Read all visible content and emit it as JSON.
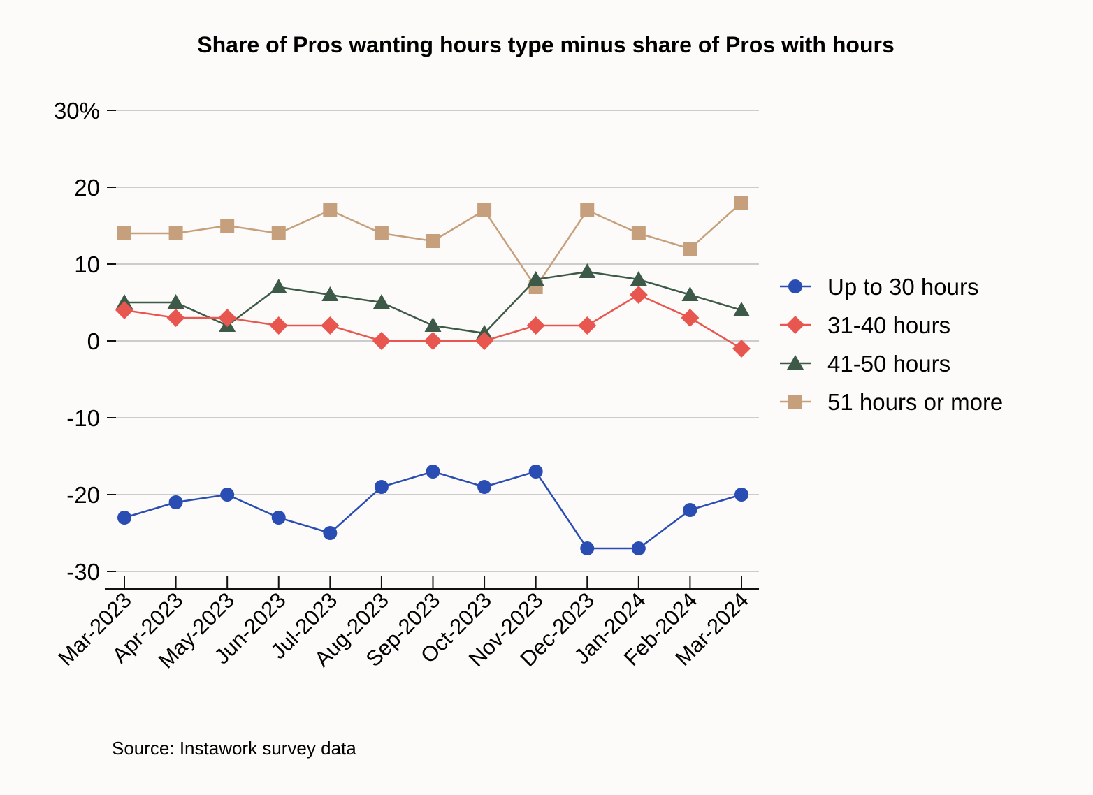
{
  "chart_data": {
    "type": "line",
    "title": "Share of Pros wanting hours type minus share of Pros with hours",
    "xlabel": "",
    "ylabel": "",
    "categories": [
      "Mar-2023",
      "Apr-2023",
      "May-2023",
      "Jun-2023",
      "Jul-2023",
      "Aug-2023",
      "Sep-2023",
      "Oct-2023",
      "Nov-2023",
      "Dec-2023",
      "Jan-2024",
      "Feb-2024",
      "Mar-2024"
    ],
    "ylim": [
      -30,
      30
    ],
    "yticks": [
      30,
      20,
      10,
      0,
      -10,
      -20,
      -30
    ],
    "ytick_labels": [
      "30%",
      "20",
      "10",
      "0",
      "-10",
      "-20",
      "-30"
    ],
    "grid": true,
    "legend_position": "right",
    "series": [
      {
        "name": "Up to 30 hours",
        "color": "#2a4db3",
        "marker": "circle",
        "values": [
          -23,
          -21,
          -20,
          -23,
          -25,
          -19,
          -17,
          -19,
          -17,
          -27,
          -27,
          -22,
          -20
        ]
      },
      {
        "name": "31-40 hours",
        "color": "#e8574f",
        "marker": "diamond",
        "values": [
          4,
          3,
          3,
          2,
          2,
          0,
          0,
          0,
          2,
          2,
          6,
          3,
          -1
        ]
      },
      {
        "name": "41-50 hours",
        "color": "#3d5a48",
        "marker": "triangle",
        "values": [
          5,
          5,
          2,
          7,
          6,
          5,
          2,
          1,
          8,
          9,
          8,
          6,
          4
        ]
      },
      {
        "name": "51 hours or more",
        "color": "#c6a07c",
        "marker": "square",
        "values": [
          14,
          14,
          15,
          14,
          17,
          14,
          13,
          17,
          7,
          17,
          14,
          12,
          18
        ]
      }
    ]
  },
  "source_note": "Source: Instawork survey data"
}
